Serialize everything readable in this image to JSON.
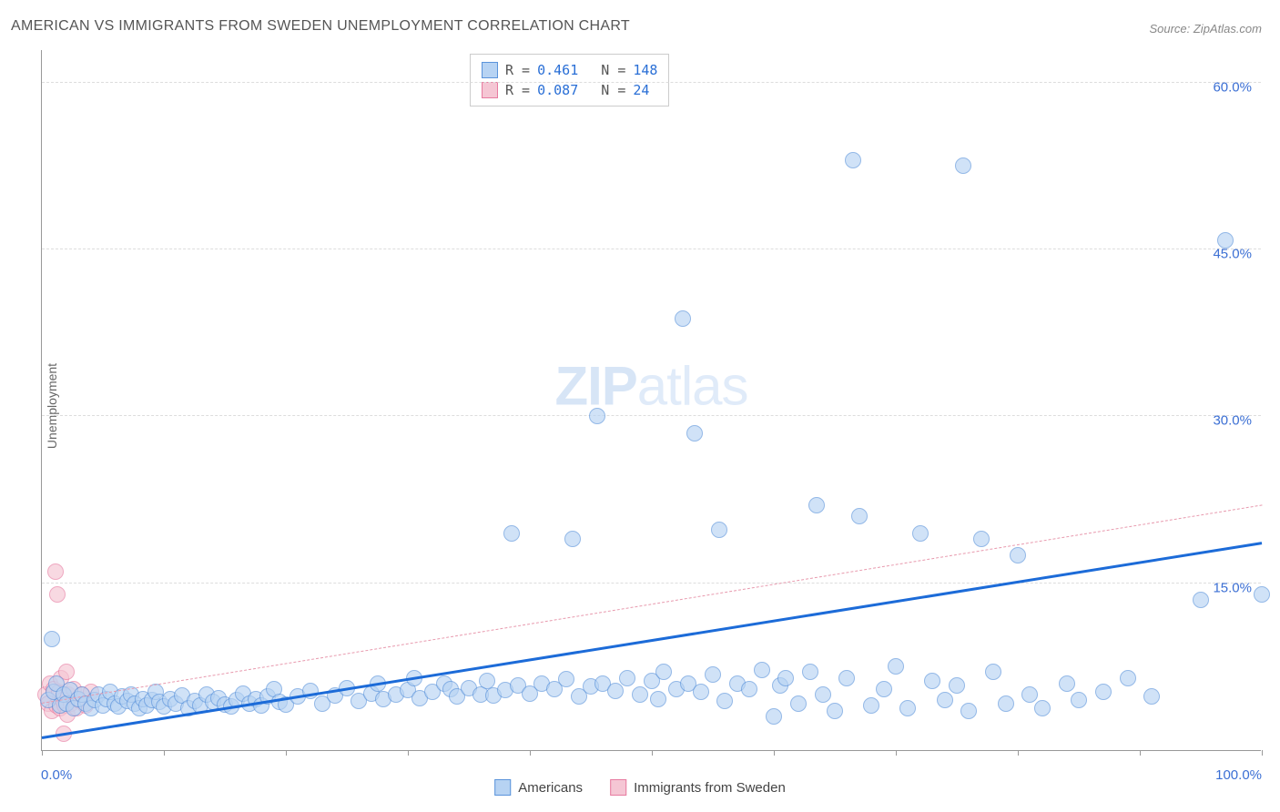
{
  "title": "AMERICAN VS IMMIGRANTS FROM SWEDEN UNEMPLOYMENT CORRELATION CHART",
  "source_prefix": "Source: ",
  "source": "ZipAtlas.com",
  "ylabel": "Unemployment",
  "watermark_zip": "ZIP",
  "watermark_atlas": "atlas",
  "chart": {
    "type": "scatter",
    "xlim": [
      0,
      100
    ],
    "ylim": [
      0,
      63
    ],
    "x_axis_min_label": "0.0%",
    "x_axis_max_label": "100.0%",
    "y_ticks": [
      15,
      30,
      45,
      60
    ],
    "y_tick_labels": [
      "15.0%",
      "30.0%",
      "45.0%",
      "60.0%"
    ],
    "x_tick_positions": [
      0,
      10,
      20,
      30,
      40,
      50,
      60,
      70,
      80,
      90,
      100
    ],
    "grid_color": "#dddddd",
    "axis_color": "#999999",
    "tick_label_color": "#3b6fd4",
    "background_color": "#ffffff",
    "point_radius": 9,
    "series": {
      "americans": {
        "label": "Americans",
        "fill": "#b7d3f3",
        "stroke": "#5a93db",
        "fill_opacity": 0.65,
        "trend_color": "#1c6bd8",
        "trend_width": 3,
        "trend_dash": "solid",
        "trend_y_at_x0": 1.0,
        "trend_y_at_x100": 18.5,
        "R": "0.461",
        "N": "148",
        "points": [
          [
            0.5,
            4.5
          ],
          [
            0.8,
            10.0
          ],
          [
            1.0,
            5.2
          ],
          [
            1.2,
            6.0
          ],
          [
            1.5,
            4.0
          ],
          [
            1.8,
            5.0
          ],
          [
            2.0,
            4.2
          ],
          [
            2.3,
            5.4
          ],
          [
            2.6,
            3.8
          ],
          [
            3.0,
            4.6
          ],
          [
            3.3,
            5.0
          ],
          [
            3.6,
            4.2
          ],
          [
            4.0,
            3.8
          ],
          [
            4.3,
            4.5
          ],
          [
            4.6,
            5.0
          ],
          [
            5.0,
            4.0
          ],
          [
            5.3,
            4.6
          ],
          [
            5.6,
            5.2
          ],
          [
            6.0,
            4.2
          ],
          [
            6.3,
            3.9
          ],
          [
            6.6,
            4.8
          ],
          [
            7.0,
            4.4
          ],
          [
            7.3,
            5.0
          ],
          [
            7.6,
            4.2
          ],
          [
            8.0,
            3.8
          ],
          [
            8.3,
            4.6
          ],
          [
            8.6,
            4.0
          ],
          [
            9.0,
            4.5
          ],
          [
            9.3,
            5.2
          ],
          [
            9.6,
            4.3
          ],
          [
            10.0,
            3.9
          ],
          [
            10.5,
            4.6
          ],
          [
            11.0,
            4.2
          ],
          [
            11.5,
            4.9
          ],
          [
            12.0,
            3.8
          ],
          [
            12.5,
            4.4
          ],
          [
            13.0,
            4.0
          ],
          [
            13.5,
            5.0
          ],
          [
            14.0,
            4.3
          ],
          [
            14.5,
            4.7
          ],
          [
            15.0,
            4.1
          ],
          [
            15.5,
            3.9
          ],
          [
            16.0,
            4.5
          ],
          [
            16.5,
            5.1
          ],
          [
            17.0,
            4.2
          ],
          [
            17.5,
            4.6
          ],
          [
            18.0,
            4.0
          ],
          [
            18.5,
            4.8
          ],
          [
            19.0,
            5.5
          ],
          [
            19.5,
            4.3
          ],
          [
            20.0,
            4.1
          ],
          [
            21.0,
            4.8
          ],
          [
            22.0,
            5.3
          ],
          [
            23.0,
            4.2
          ],
          [
            24.0,
            4.9
          ],
          [
            25.0,
            5.6
          ],
          [
            26.0,
            4.4
          ],
          [
            27.0,
            5.1
          ],
          [
            27.5,
            6.0
          ],
          [
            28.0,
            4.6
          ],
          [
            29.0,
            5.0
          ],
          [
            30.0,
            5.4
          ],
          [
            30.5,
            6.5
          ],
          [
            31.0,
            4.7
          ],
          [
            32.0,
            5.2
          ],
          [
            33.0,
            6.0
          ],
          [
            33.5,
            5.5
          ],
          [
            34.0,
            4.8
          ],
          [
            35.0,
            5.6
          ],
          [
            36.0,
            5.0
          ],
          [
            36.5,
            6.2
          ],
          [
            37.0,
            4.9
          ],
          [
            38.0,
            5.4
          ],
          [
            38.5,
            19.5
          ],
          [
            39.0,
            5.8
          ],
          [
            40.0,
            5.1
          ],
          [
            41.0,
            6.0
          ],
          [
            42.0,
            5.5
          ],
          [
            43.0,
            6.4
          ],
          [
            43.5,
            19.0
          ],
          [
            44.0,
            4.8
          ],
          [
            45.0,
            5.7
          ],
          [
            45.5,
            30.0
          ],
          [
            46.0,
            6.0
          ],
          [
            47.0,
            5.3
          ],
          [
            48.0,
            6.5
          ],
          [
            49.0,
            5.0
          ],
          [
            50.0,
            6.2
          ],
          [
            50.5,
            4.6
          ],
          [
            51.0,
            7.0
          ],
          [
            52.0,
            5.5
          ],
          [
            52.5,
            38.8
          ],
          [
            53.0,
            6.0
          ],
          [
            53.5,
            28.5
          ],
          [
            54.0,
            5.2
          ],
          [
            55.0,
            6.8
          ],
          [
            55.5,
            19.8
          ],
          [
            56.0,
            4.4
          ],
          [
            57.0,
            6.0
          ],
          [
            58.0,
            5.5
          ],
          [
            59.0,
            7.2
          ],
          [
            60.0,
            3.0
          ],
          [
            60.5,
            5.8
          ],
          [
            61.0,
            6.5
          ],
          [
            62.0,
            4.2
          ],
          [
            63.0,
            7.0
          ],
          [
            63.5,
            22.0
          ],
          [
            64.0,
            5.0
          ],
          [
            65.0,
            3.5
          ],
          [
            66.0,
            6.5
          ],
          [
            66.5,
            53.0
          ],
          [
            67.0,
            21.0
          ],
          [
            68.0,
            4.0
          ],
          [
            69.0,
            5.5
          ],
          [
            70.0,
            7.5
          ],
          [
            71.0,
            3.8
          ],
          [
            72.0,
            19.5
          ],
          [
            73.0,
            6.2
          ],
          [
            74.0,
            4.5
          ],
          [
            75.0,
            5.8
          ],
          [
            75.5,
            52.5
          ],
          [
            76.0,
            3.5
          ],
          [
            77.0,
            19.0
          ],
          [
            78.0,
            7.0
          ],
          [
            79.0,
            4.2
          ],
          [
            80.0,
            17.5
          ],
          [
            81.0,
            5.0
          ],
          [
            82.0,
            3.8
          ],
          [
            84.0,
            6.0
          ],
          [
            85.0,
            4.5
          ],
          [
            87.0,
            5.2
          ],
          [
            89.0,
            6.5
          ],
          [
            91.0,
            4.8
          ],
          [
            95.0,
            13.5
          ],
          [
            97.0,
            45.8
          ],
          [
            100.0,
            14.0
          ]
        ]
      },
      "immigrants": {
        "label": "Immigrants from Sweden",
        "fill": "#f5c6d4",
        "stroke": "#e77ba0",
        "fill_opacity": 0.65,
        "trend_color": "#e89aae",
        "trend_width": 1,
        "trend_dash": "dashed",
        "trend_y_at_x0": 4.2,
        "trend_y_at_x100": 22.0,
        "R": "0.087",
        "N": " 24",
        "points": [
          [
            0.3,
            5.0
          ],
          [
            0.5,
            4.2
          ],
          [
            0.7,
            6.0
          ],
          [
            0.8,
            3.5
          ],
          [
            1.0,
            5.5
          ],
          [
            1.1,
            16.0
          ],
          [
            1.2,
            4.0
          ],
          [
            1.3,
            14.0
          ],
          [
            1.4,
            5.2
          ],
          [
            1.5,
            3.8
          ],
          [
            1.6,
            6.5
          ],
          [
            1.7,
            4.5
          ],
          [
            1.8,
            1.5
          ],
          [
            1.9,
            4.0
          ],
          [
            2.0,
            7.0
          ],
          [
            2.1,
            3.2
          ],
          [
            2.2,
            5.0
          ],
          [
            2.4,
            4.2
          ],
          [
            2.6,
            5.5
          ],
          [
            2.8,
            3.8
          ],
          [
            3.0,
            4.5
          ],
          [
            3.3,
            5.0
          ],
          [
            3.6,
            4.0
          ],
          [
            4.0,
            5.2
          ]
        ]
      }
    },
    "legend_top": {
      "R_label": "R =",
      "N_label": "N ="
    }
  }
}
